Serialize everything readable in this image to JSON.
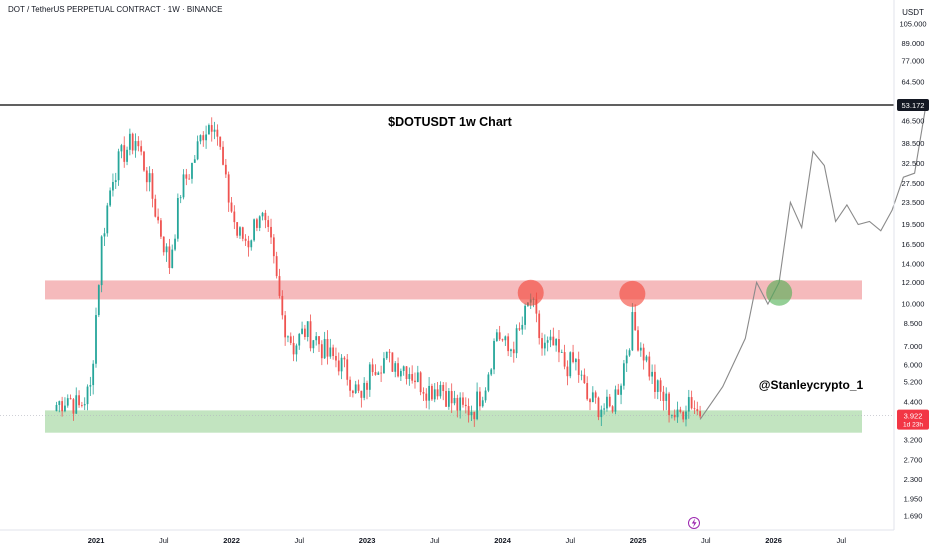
{
  "header": {
    "symbol_line": "DOT / TetherUS PERPETUAL CONTRACT · 1W · BINANCE"
  },
  "price_axis": {
    "unit_label": "USDT",
    "ticks": [
      "105.000",
      "89.000",
      "77.000",
      "64.500",
      "53.172",
      "46.500",
      "38.500",
      "32.500",
      "27.500",
      "23.500",
      "19.500",
      "16.500",
      "14.000",
      "12.000",
      "10.000",
      "8.500",
      "7.000",
      "6.000",
      "5.200",
      "4.400",
      "3.922",
      "3.200",
      "2.700",
      "2.300",
      "1.950",
      "1.690"
    ],
    "log_scale": true,
    "current_price": "3.922",
    "countdown": "1d 23h",
    "level_label": "53.172"
  },
  "time_axis": {
    "ticks": [
      "2021",
      "Jul",
      "2022",
      "Jul",
      "2023",
      "Jul",
      "2024",
      "Jul",
      "2025",
      "Jul",
      "2026",
      "Jul"
    ]
  },
  "annotations": {
    "title": "$DOTUSDT 1w Chart",
    "author": "@Stanleycrypto_1"
  },
  "zones": {
    "resistance": {
      "low": 10.4,
      "high": 12.2,
      "color": "#f4b3b5"
    },
    "support": {
      "low": 3.4,
      "high": 4.1,
      "color": "#bfe3bd"
    }
  },
  "colors": {
    "up": "#26a69a",
    "down": "#ef5350",
    "projection": "#8a8a8a",
    "level_line": "#000000",
    "badge_dark": "#131722",
    "badge_red": "#f23645"
  },
  "chart_data": {
    "type": "candlestick",
    "title": "$DOTUSDT 1w Chart",
    "y_scale": "log",
    "ylim": [
      1.6,
      110
    ],
    "key_level": 53.172,
    "closes_approx": [
      {
        "date": "2020-09",
        "close": 4.3
      },
      {
        "date": "2020-10",
        "close": 4.6
      },
      {
        "date": "2020-11",
        "close": 4.2
      },
      {
        "date": "2020-12",
        "close": 4.9
      },
      {
        "date": "2021-01",
        "close": 17.0
      },
      {
        "date": "2021-02",
        "close": 30.0
      },
      {
        "date": "2021-03",
        "close": 36.0
      },
      {
        "date": "2021-04",
        "close": 40.0
      },
      {
        "date": "2021-05",
        "close": 30.0
      },
      {
        "date": "2021-06",
        "close": 20.0
      },
      {
        "date": "2021-07",
        "close": 14.0
      },
      {
        "date": "2021-08",
        "close": 26.0
      },
      {
        "date": "2021-09",
        "close": 32.0
      },
      {
        "date": "2021-10",
        "close": 43.0
      },
      {
        "date": "2021-11",
        "close": 48.0
      },
      {
        "date": "2021-12",
        "close": 27.0
      },
      {
        "date": "2022-01",
        "close": 18.0
      },
      {
        "date": "2022-02",
        "close": 17.0
      },
      {
        "date": "2022-03",
        "close": 22.0
      },
      {
        "date": "2022-04",
        "close": 16.0
      },
      {
        "date": "2022-05",
        "close": 9.0
      },
      {
        "date": "2022-06",
        "close": 7.0
      },
      {
        "date": "2022-07",
        "close": 8.0
      },
      {
        "date": "2022-08",
        "close": 7.5
      },
      {
        "date": "2022-09",
        "close": 6.5
      },
      {
        "date": "2022-10",
        "close": 6.2
      },
      {
        "date": "2022-11",
        "close": 5.4
      },
      {
        "date": "2022-12",
        "close": 4.4
      },
      {
        "date": "2023-01",
        "close": 6.1
      },
      {
        "date": "2023-02",
        "close": 6.3
      },
      {
        "date": "2023-03",
        "close": 6.1
      },
      {
        "date": "2023-04",
        "close": 5.9
      },
      {
        "date": "2023-05",
        "close": 5.3
      },
      {
        "date": "2023-06",
        "close": 4.9
      },
      {
        "date": "2023-07",
        "close": 5.1
      },
      {
        "date": "2023-08",
        "close": 4.4
      },
      {
        "date": "2023-09",
        "close": 4.1
      },
      {
        "date": "2023-10",
        "close": 4.2
      },
      {
        "date": "2023-11",
        "close": 5.2
      },
      {
        "date": "2023-12",
        "close": 8.0
      },
      {
        "date": "2024-01",
        "close": 6.7
      },
      {
        "date": "2024-02",
        "close": 7.8
      },
      {
        "date": "2024-03",
        "close": 10.5
      },
      {
        "date": "2024-04",
        "close": 6.9
      },
      {
        "date": "2024-05",
        "close": 7.0
      },
      {
        "date": "2024-06",
        "close": 6.0
      },
      {
        "date": "2024-07",
        "close": 6.1
      },
      {
        "date": "2024-08",
        "close": 4.5
      },
      {
        "date": "2024-09",
        "close": 4.3
      },
      {
        "date": "2024-10",
        "close": 4.1
      },
      {
        "date": "2024-11",
        "close": 5.4
      },
      {
        "date": "2024-12",
        "close": 8.5
      },
      {
        "date": "2025-01",
        "close": 6.7
      },
      {
        "date": "2025-02",
        "close": 5.0
      },
      {
        "date": "2025-03",
        "close": 4.4
      },
      {
        "date": "2025-04",
        "close": 3.8
      },
      {
        "date": "2025-05",
        "close": 4.6
      },
      {
        "date": "2025-06",
        "close": 3.9
      }
    ],
    "projection": [
      {
        "date": "2025-06",
        "value": 3.8
      },
      {
        "date": "2025-08",
        "value": 5.0
      },
      {
        "date": "2025-10",
        "value": 7.5
      },
      {
        "date": "2025-11",
        "value": 12.0
      },
      {
        "date": "2025-12",
        "value": 10.0
      },
      {
        "date": "2026-01",
        "value": 12.0
      },
      {
        "date": "2026-02",
        "value": 23.5
      },
      {
        "date": "2026-03",
        "value": 19.0
      },
      {
        "date": "2026-04",
        "value": 36.0
      },
      {
        "date": "2026-05",
        "value": 32.0
      },
      {
        "date": "2026-06",
        "value": 20.0
      },
      {
        "date": "2026-07",
        "value": 23.0
      },
      {
        "date": "2026-08",
        "value": 19.5
      },
      {
        "date": "2026-09",
        "value": 20.0
      },
      {
        "date": "2026-10",
        "value": 18.5
      },
      {
        "date": "2026-11",
        "value": 22.0
      },
      {
        "date": "2026-12",
        "value": 29.0
      },
      {
        "date": "2027-01",
        "value": 30.0
      },
      {
        "date": "2027-02",
        "value": 53.0
      }
    ],
    "markers": [
      {
        "date": "2024-03",
        "value": 11.0,
        "color": "red",
        "label": ""
      },
      {
        "date": "2024-12",
        "value": 10.9,
        "color": "red",
        "label": ""
      },
      {
        "date": "2026-01",
        "value": 11.0,
        "color": "green",
        "label": ""
      }
    ]
  }
}
